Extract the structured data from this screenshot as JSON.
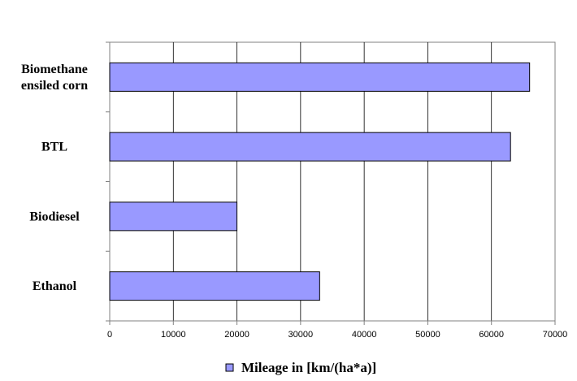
{
  "chart_data": {
    "type": "bar",
    "orientation": "horizontal",
    "categories": [
      [
        "Biomethane",
        "ensiled corn"
      ],
      [
        "BTL"
      ],
      [
        "Biodiesel"
      ],
      [
        "Ethanol"
      ]
    ],
    "series": [
      {
        "name": "Mileage in [km/(ha*a)]",
        "values": [
          66000,
          63000,
          20000,
          33000
        ]
      }
    ],
    "xlim": [
      0,
      70000
    ],
    "xticks": [
      "0",
      "10000",
      "20000",
      "30000",
      "40000",
      "50000",
      "60000",
      "70000"
    ],
    "grid": "vertical",
    "legend_position": "bottom-center",
    "colors": {
      "bar_fill": "#9999FF",
      "bar_stroke": "#000000",
      "grid": "#000000",
      "axis": "#808080"
    }
  }
}
